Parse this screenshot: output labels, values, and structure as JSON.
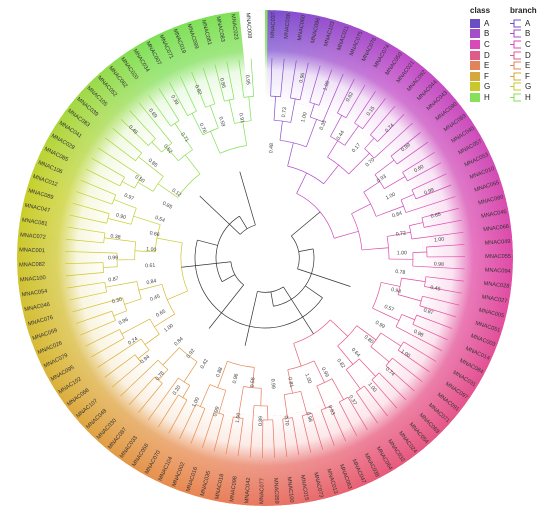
{
  "chart_data": {
    "type": "circular_phylogenetic_tree",
    "leaves": [
      "MNAC037",
      "MNAC036",
      "MNAC060",
      "MNAC096",
      "MNAC103",
      "MNAC011",
      "MNAC075",
      "MNAC076",
      "MNAC074",
      "MNAC050",
      "MNAC021",
      "MNAC092",
      "MNAC044",
      "MNAC043",
      "MNAC090",
      "MNAC093",
      "MNAC040",
      "MNAC057",
      "MNAC053",
      "MNAC010",
      "MNAC065",
      "MNAC080",
      "MNAC046",
      "MNAC066",
      "MNAC049",
      "MNAC055",
      "MNAC094",
      "MNAC028",
      "MNAC027",
      "MNAC005",
      "MNAC051",
      "MNAC003",
      "MNAC014",
      "MNAC084",
      "MNAC031",
      "MNAC097",
      "MNAC091",
      "MNAC071",
      "MNAC069",
      "MNAC054",
      "MNAC024",
      "MNAC032",
      "MNAC064",
      "MNAC038",
      "MNAC047",
      "MNAC063",
      "MNAC013",
      "MNAC073",
      "MNAC015",
      "MNAC100",
      "MNAC059",
      "MNAC077",
      "MNAC042",
      "MNAC098",
      "MNAC018",
      "MNAC035",
      "MNAC016",
      "MNAC002",
      "MNAC104",
      "MNAC070",
      "MNAC058",
      "MNAC033",
      "MNAC087",
      "MNAC030",
      "MNAC048",
      "MNAC107",
      "MNAC068",
      "MNAC102",
      "MNAC095",
      "MNAC079",
      "MNAC026",
      "MNAC059",
      "MNAC076",
      "MNAC046",
      "MNAC054",
      "MNAC100",
      "MNAC082",
      "MNAC001",
      "MNAC072",
      "MNAC081",
      "MNAC047",
      "MNAC089",
      "MNAC012",
      "MNAC106",
      "MNAC085",
      "MNAC029",
      "MNAC041",
      "MNAC083",
      "MNAC039",
      "MNAC105",
      "MNAC052",
      "MNAC062",
      "MNAC020",
      "MNAC034",
      "MNAC007",
      "MNAC071",
      "MNAC019",
      "MNAC099",
      "MNAC081",
      "MNAC083",
      "MNAC023",
      "MNAC008"
    ],
    "bootstrap_values": [
      "0.48",
      "0.73",
      "0.96",
      "1.00",
      "1.00",
      "0.35",
      "0.62",
      "0.44",
      "0.15",
      "0.17",
      "0.74",
      "0.70",
      "0.99",
      "0.93",
      "0.60",
      "1.00",
      "0.99",
      "0.84",
      "0.65",
      "0.72",
      "1.00",
      "1.00",
      "0.98",
      "0.78",
      "0.49",
      "0.94",
      "0.87",
      "0.57",
      "0.98",
      "0.99",
      "1.00",
      "0.80",
      "0.74",
      "0.64",
      "1.00",
      "0.82",
      "0.37",
      "0.99",
      "0.63",
      "1.00",
      "0.98",
      "0.81",
      "0.70",
      "0.99",
      "0.89",
      "0.58",
      "1.00",
      "0.96",
      "0.99",
      "0.88",
      "1.00",
      "0.42",
      "0.20",
      "0.92",
      "0.78",
      "0.84",
      "0.94",
      "1.00",
      "0.24",
      "0.65",
      "0.96",
      "0.45",
      "0.30",
      "0.84",
      "0.87",
      "0.61",
      "0.99",
      "1.00",
      "0.38",
      "0.66",
      "0.90",
      "0.54",
      "0.97",
      "0.85",
      "0.50",
      "0.12",
      "0.85",
      "0.49",
      "0.52",
      "0.69",
      "0.71",
      "0.39",
      "0.76",
      "0.82",
      "0.59",
      "0.86",
      "0.91",
      "0.95"
    ],
    "legend_class": {
      "title": "class",
      "entries": [
        {
          "label": "A",
          "color": "#6a4fc4"
        },
        {
          "label": "B",
          "color": "#a64ec9"
        },
        {
          "label": "C",
          "color": "#d94ab7"
        },
        {
          "label": "D",
          "color": "#e05a8a"
        },
        {
          "label": "E",
          "color": "#e2835a"
        },
        {
          "label": "F",
          "color": "#d4a83a"
        },
        {
          "label": "G",
          "color": "#c8c82c"
        },
        {
          "label": "H",
          "color": "#86e05a"
        }
      ]
    },
    "legend_branch": {
      "title": "branch",
      "entries": [
        {
          "label": "A",
          "color": "#6a4fc4"
        },
        {
          "label": "B",
          "color": "#a64ec9"
        },
        {
          "label": "C",
          "color": "#d94ab7"
        },
        {
          "label": "D",
          "color": "#e05a8a"
        },
        {
          "label": "E",
          "color": "#e2835a"
        },
        {
          "label": "F",
          "color": "#d4a83a"
        },
        {
          "label": "G",
          "color": "#c8c82c"
        },
        {
          "label": "H",
          "color": "#86e05a"
        }
      ]
    }
  }
}
